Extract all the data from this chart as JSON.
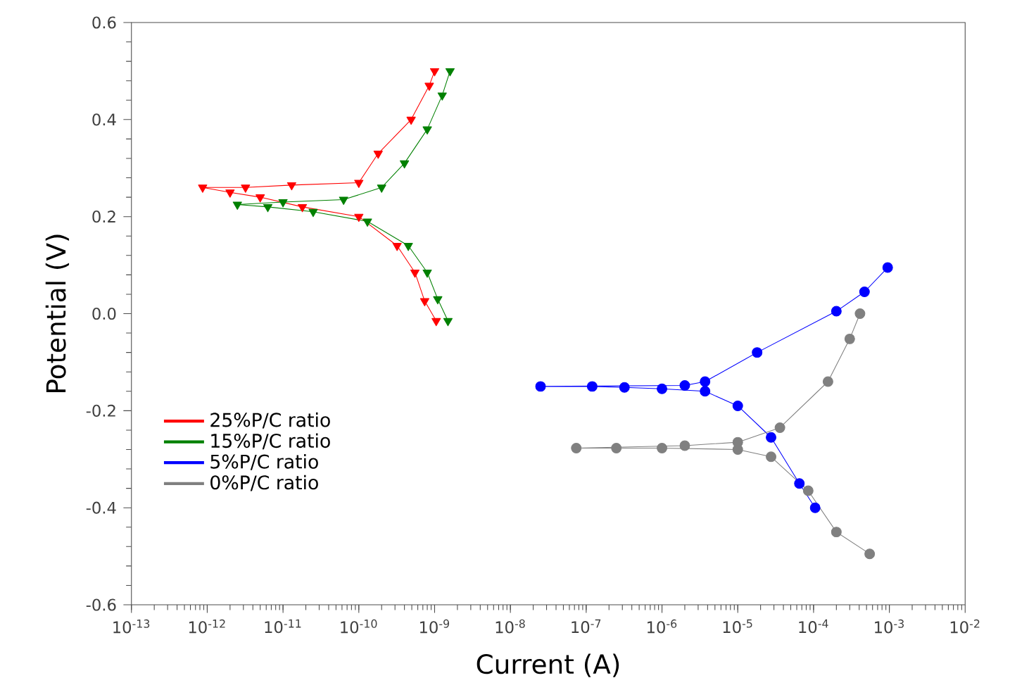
{
  "chart_data": {
    "type": "line",
    "xlabel": "Current (A)",
    "ylabel": "Potential (V)",
    "log": "x",
    "legend": "bottom left",
    "line_style": "solid",
    "xlim": [
      1e-13,
      0.01
    ],
    "xticks": [
      {
        "value": 1e-13,
        "label": "10$^{-13}$"
      },
      {
        "value": 1e-12,
        "label": "10$^{-12}$"
      },
      {
        "value": 1e-11,
        "label": "10$^{-11}$"
      },
      {
        "value": 1e-10,
        "label": "10$^{-10}$"
      },
      {
        "value": 1e-09,
        "label": "10$^{-9}$"
      },
      {
        "value": 1e-08,
        "label": "10$^{-8}$"
      },
      {
        "value": 1e-07,
        "label": "10$^{-7}$"
      },
      {
        "value": 1e-06,
        "label": "10$^{-6}$"
      },
      {
        "value": 1e-05,
        "label": "10$^{-5}$"
      },
      {
        "value": 0.0001,
        "label": "10$^{-4}$"
      },
      {
        "value": 0.001,
        "label": "10$^{-3}$"
      },
      {
        "value": 0.01,
        "label": "10$^{-2}$"
      }
    ],
    "ylim": [
      -0.6,
      0.6
    ],
    "yticks": [
      {
        "value": -0.6,
        "label": "-0.6"
      },
      {
        "value": -0.4,
        "label": "-0.4"
      },
      {
        "value": -0.2,
        "label": "-0.2"
      },
      {
        "value": 0,
        "label": "0.0"
      },
      {
        "value": 0.2,
        "label": "0.2"
      },
      {
        "value": 0.4,
        "label": "0.4"
      },
      {
        "value": 0.6,
        "label": "0.6"
      }
    ],
    "series": [
      {
        "name": "25%P/C ratio",
        "color": "#ff0000",
        "marker": "triangle",
        "x": [
          1.05e-09,
          7.4e-10,
          5.5e-10,
          3.2e-10,
          1e-10,
          1.8e-11,
          5e-12,
          2e-12,
          8.7e-13,
          3.2e-12,
          1.3e-11,
          1e-10,
          1.8e-10,
          4.9e-10,
          8.5e-10,
          1e-09
        ],
        "values": [
          -0.015,
          0.026,
          0.085,
          0.14,
          0.2,
          0.22,
          0.24,
          0.25,
          0.26,
          0.26,
          0.265,
          0.27,
          0.33,
          0.4,
          0.47,
          0.5
        ]
      },
      {
        "name": "15%P/C ratio",
        "color": "#008000",
        "marker": "triangle",
        "x": [
          1.5e-09,
          1.1e-09,
          8e-10,
          4.5e-10,
          1.3e-10,
          2.5e-11,
          6.3e-12,
          2.5e-12,
          1e-11,
          6.3e-11,
          2e-10,
          4e-10,
          8e-10,
          1.26e-09,
          1.6e-09
        ],
        "values": [
          -0.015,
          0.03,
          0.085,
          0.14,
          0.19,
          0.21,
          0.22,
          0.225,
          0.23,
          0.235,
          0.26,
          0.31,
          0.38,
          0.45,
          0.5
        ]
      },
      {
        "name": "5%P/C ratio",
        "color": "#0000ff",
        "marker": "circle",
        "x": [
          0.000105,
          6.5e-05,
          2.75e-05,
          1e-05,
          3.7e-06,
          1e-06,
          3.2e-07,
          1.2e-07,
          2.5e-08,
          2e-06,
          3.7e-06,
          1.8e-05,
          0.0002,
          0.00047,
          0.00095
        ],
        "values": [
          -0.4,
          -0.35,
          -0.255,
          -0.19,
          -0.16,
          -0.155,
          -0.152,
          -0.15,
          -0.15,
          -0.148,
          -0.14,
          -0.08,
          0.005,
          0.045,
          0.095
        ]
      },
      {
        "name": "0%P/C ratio",
        "color": "#808080",
        "marker": "circle",
        "x": [
          0.00055,
          0.0002,
          8.5e-05,
          2.75e-05,
          1e-05,
          1e-06,
          2.5e-07,
          7.4e-08,
          2e-06,
          1e-05,
          3.6e-05,
          0.000155,
          0.0003,
          0.00041
        ],
        "values": [
          -0.495,
          -0.45,
          -0.365,
          -0.295,
          -0.28,
          -0.277,
          -0.277,
          -0.277,
          -0.272,
          -0.265,
          -0.235,
          -0.14,
          -0.052,
          0.0
        ]
      }
    ]
  }
}
